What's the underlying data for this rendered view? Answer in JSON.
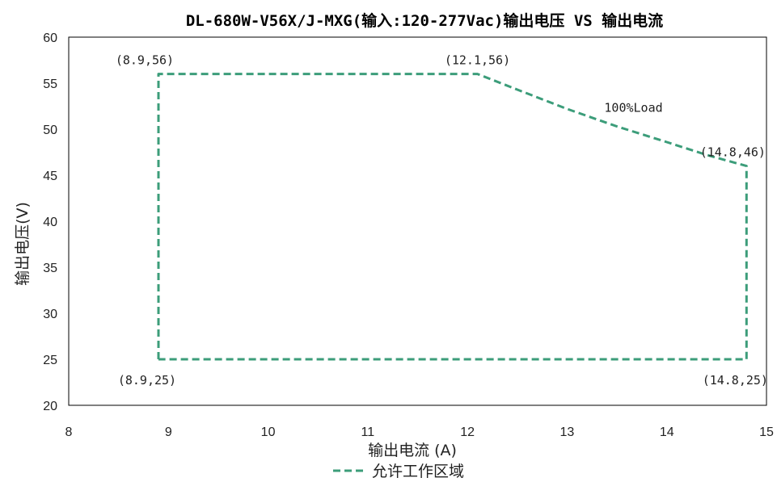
{
  "chart_data": {
    "type": "line",
    "title": "DL-680W-V56X/J-MXG(输入:120-277Vac)输出电压 VS 输出电流",
    "xlabel": "输出电流 (A)",
    "ylabel": "输出电压(V)",
    "xlim": [
      8,
      15
    ],
    "ylim": [
      20,
      60
    ],
    "x_ticks": [
      "8",
      "9",
      "10",
      "11",
      "12",
      "13",
      "14",
      "15"
    ],
    "y_ticks": [
      "20",
      "25",
      "30",
      "35",
      "40",
      "45",
      "50",
      "55",
      "60"
    ],
    "grid": false,
    "legend_position": "bottom",
    "series": [
      {
        "name": "允许工作区域",
        "color": "#3c9d7a",
        "style": "dashed",
        "points": [
          {
            "x": 8.9,
            "y": 25
          },
          {
            "x": 8.9,
            "y": 56
          },
          {
            "x": 12.1,
            "y": 56
          },
          {
            "x": 12.5,
            "y": 54.3
          },
          {
            "x": 13.0,
            "y": 52.2
          },
          {
            "x": 13.5,
            "y": 50.3
          },
          {
            "x": 14.0,
            "y": 48.6
          },
          {
            "x": 14.4,
            "y": 47.2
          },
          {
            "x": 14.8,
            "y": 46
          },
          {
            "x": 14.8,
            "y": 25
          },
          {
            "x": 8.9,
            "y": 25
          }
        ]
      }
    ],
    "annotations": [
      {
        "text": "(8.9,56)",
        "x": 8.9,
        "y": 56,
        "anchor": "above-left"
      },
      {
        "text": "(12.1,56)",
        "x": 12.1,
        "y": 56,
        "anchor": "above"
      },
      {
        "text": "100%Load",
        "x": 13.6,
        "y": 52.5,
        "anchor": "right"
      },
      {
        "text": "(14.8,46)",
        "x": 14.8,
        "y": 46,
        "anchor": "above-left"
      },
      {
        "text": "(8.9,25)",
        "x": 8.9,
        "y": 25,
        "anchor": "below-left"
      },
      {
        "text": "(14.8,25)",
        "x": 14.8,
        "y": 25,
        "anchor": "below-left"
      }
    ]
  }
}
